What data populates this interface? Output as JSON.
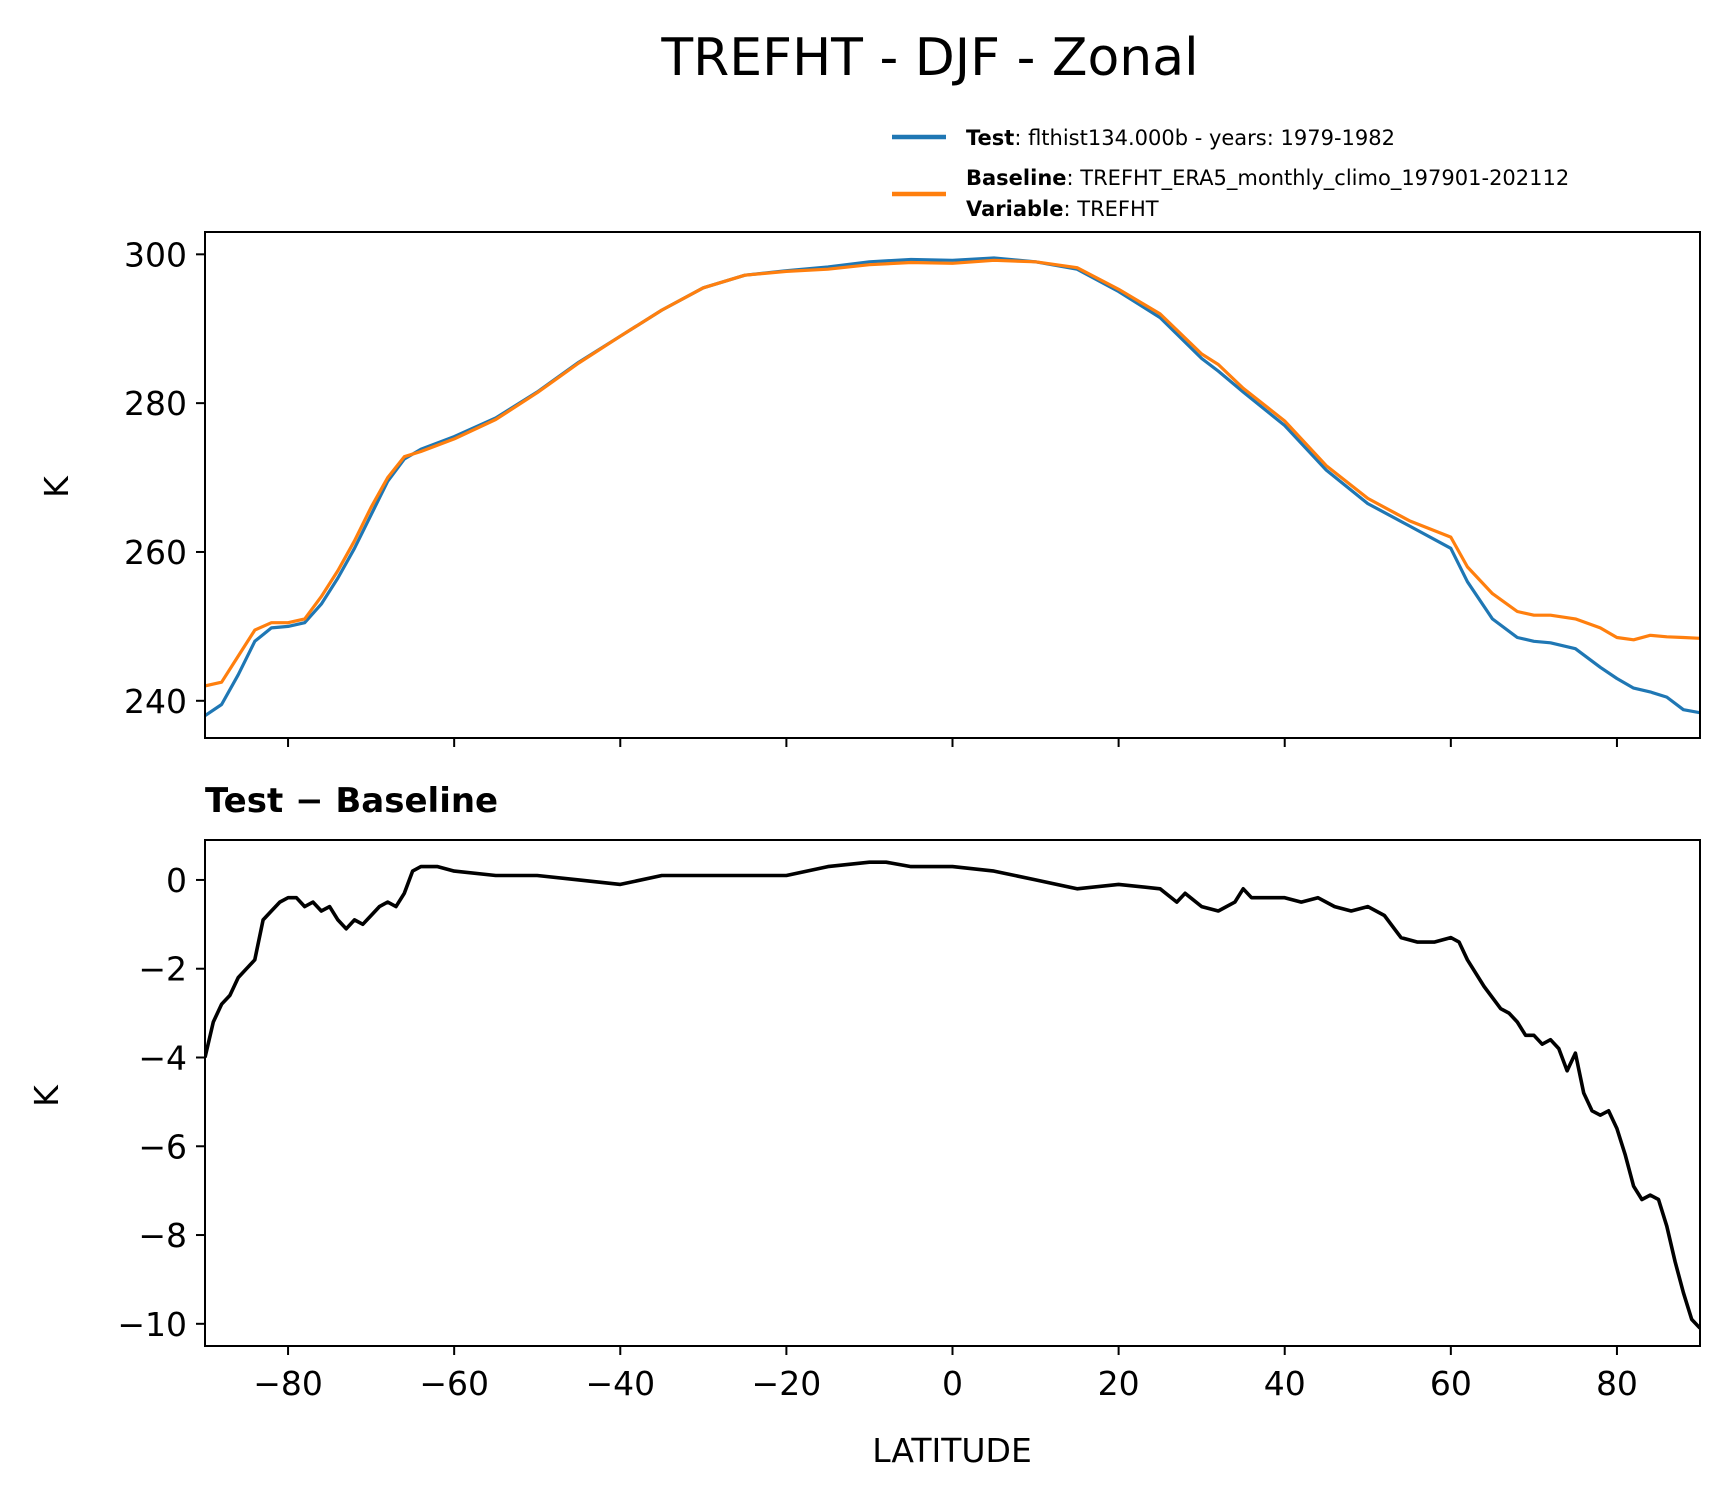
{
  "chart_data": [
    {
      "type": "line",
      "title": "TREFHT - DJF - Zonal",
      "xlabel": "",
      "ylabel": "K",
      "xlim": [
        -90,
        90
      ],
      "ylim": [
        235,
        303
      ],
      "yticks": [
        240,
        260,
        280,
        300
      ],
      "xticks": [
        -80,
        -60,
        -40,
        -20,
        0,
        20,
        40,
        60,
        80
      ],
      "legend": {
        "placement": "above-top-right",
        "entries": [
          {
            "bold": "Test",
            "text": ": flthist134.000b - years: 1979-1982",
            "series": "test"
          },
          {
            "bold": "Baseline",
            "text": ": TREFHT_ERA5_monthly_climo_197901-202112",
            "series": "baseline"
          },
          {
            "bold": "Variable",
            "text": ": TREFHT",
            "series": null
          }
        ]
      },
      "x": [
        -90,
        -88,
        -86,
        -84,
        -82,
        -80,
        -78,
        -76,
        -74,
        -72,
        -70,
        -68,
        -66,
        -64,
        -60,
        -55,
        -50,
        -45,
        -40,
        -35,
        -30,
        -25,
        -20,
        -15,
        -10,
        -5,
        0,
        5,
        10,
        15,
        20,
        25,
        30,
        32,
        35,
        40,
        45,
        50,
        55,
        60,
        62,
        65,
        68,
        70,
        72,
        75,
        78,
        80,
        82,
        84,
        86,
        88,
        90
      ],
      "series": [
        {
          "name": "Test",
          "color": "#1f77b4",
          "values": [
            238.0,
            239.5,
            243.5,
            248.0,
            249.8,
            250.0,
            250.5,
            253.0,
            256.5,
            260.5,
            265.0,
            269.5,
            272.5,
            273.8,
            275.5,
            278.0,
            281.5,
            285.5,
            289.0,
            292.5,
            295.5,
            297.2,
            297.8,
            298.3,
            299.0,
            299.3,
            299.2,
            299.5,
            299.0,
            298.0,
            295.0,
            291.5,
            286.0,
            284.3,
            281.5,
            277.0,
            271.0,
            266.5,
            263.5,
            260.5,
            256.0,
            251.0,
            248.5,
            248.0,
            247.8,
            247.0,
            244.5,
            243.0,
            241.7,
            241.2,
            240.5,
            238.8,
            238.4
          ]
        },
        {
          "name": "Baseline",
          "color": "#ff7f0e",
          "values": [
            242.0,
            242.5,
            246.0,
            249.5,
            250.5,
            250.5,
            251.0,
            254.0,
            257.5,
            261.5,
            266.0,
            270.0,
            272.8,
            273.5,
            275.2,
            277.8,
            281.4,
            285.4,
            289.0,
            292.5,
            295.5,
            297.2,
            297.7,
            298.0,
            298.6,
            298.9,
            298.8,
            299.2,
            299.0,
            298.2,
            295.3,
            292.0,
            286.6,
            285.2,
            282.0,
            277.6,
            271.6,
            267.2,
            264.2,
            262.0,
            258.0,
            254.4,
            252.0,
            251.5,
            251.5,
            251.0,
            249.8,
            248.5,
            248.2,
            248.8,
            248.6,
            248.5,
            248.4
          ]
        }
      ]
    },
    {
      "type": "line",
      "title": "Test − Baseline",
      "xlabel": "LATITUDE",
      "ylabel": "K",
      "xlim": [
        -90,
        90
      ],
      "ylim": [
        -10.5,
        0.9
      ],
      "yticks": [
        0,
        -2,
        -4,
        -6,
        -8,
        -10
      ],
      "ytick_labels": [
        "0",
        "−2",
        "−4",
        "−6",
        "−8",
        "−10"
      ],
      "xticks": [
        -80,
        -60,
        -40,
        -20,
        0,
        20,
        40,
        60,
        80
      ],
      "xtick_labels": [
        "−80",
        "−60",
        "−40",
        "−20",
        "0",
        "20",
        "40",
        "60",
        "80"
      ],
      "x": [
        -90,
        -89,
        -88,
        -87,
        -86,
        -85,
        -84,
        -83,
        -82,
        -81,
        -80,
        -79,
        -78,
        -77,
        -76,
        -75,
        -74,
        -73,
        -72,
        -71,
        -70,
        -69,
        -68,
        -67,
        -66,
        -65,
        -64,
        -62,
        -60,
        -55,
        -50,
        -45,
        -40,
        -35,
        -30,
        -25,
        -20,
        -15,
        -10,
        -8,
        -5,
        0,
        5,
        10,
        15,
        20,
        25,
        27,
        28,
        30,
        32,
        34,
        35,
        36,
        38,
        40,
        42,
        44,
        46,
        48,
        50,
        52,
        54,
        56,
        58,
        60,
        61,
        62,
        64,
        66,
        67,
        68,
        69,
        70,
        71,
        72,
        73,
        74,
        75,
        76,
        77,
        78,
        79,
        80,
        81,
        82,
        83,
        84,
        85,
        86,
        87,
        88,
        89,
        90
      ],
      "series": [
        {
          "name": "Test − Baseline",
          "color": "#000000",
          "values": [
            -4.0,
            -3.2,
            -2.8,
            -2.6,
            -2.2,
            -2.0,
            -1.8,
            -0.9,
            -0.7,
            -0.5,
            -0.4,
            -0.4,
            -0.6,
            -0.5,
            -0.7,
            -0.6,
            -0.9,
            -1.1,
            -0.9,
            -1.0,
            -0.8,
            -0.6,
            -0.5,
            -0.6,
            -0.3,
            0.2,
            0.3,
            0.3,
            0.2,
            0.1,
            0.1,
            0.0,
            -0.1,
            0.1,
            0.1,
            0.1,
            0.1,
            0.3,
            0.4,
            0.4,
            0.3,
            0.3,
            0.2,
            0.0,
            -0.2,
            -0.1,
            -0.2,
            -0.5,
            -0.3,
            -0.6,
            -0.7,
            -0.5,
            -0.2,
            -0.4,
            -0.4,
            -0.4,
            -0.5,
            -0.4,
            -0.6,
            -0.7,
            -0.6,
            -0.8,
            -1.3,
            -1.4,
            -1.4,
            -1.3,
            -1.4,
            -1.8,
            -2.4,
            -2.9,
            -3.0,
            -3.2,
            -3.5,
            -3.5,
            -3.7,
            -3.6,
            -3.8,
            -4.3,
            -3.9,
            -4.8,
            -5.2,
            -5.3,
            -5.2,
            -5.6,
            -6.2,
            -6.9,
            -7.2,
            -7.1,
            -7.2,
            -7.8,
            -8.6,
            -9.3,
            -9.9,
            -10.1
          ]
        }
      ]
    }
  ]
}
